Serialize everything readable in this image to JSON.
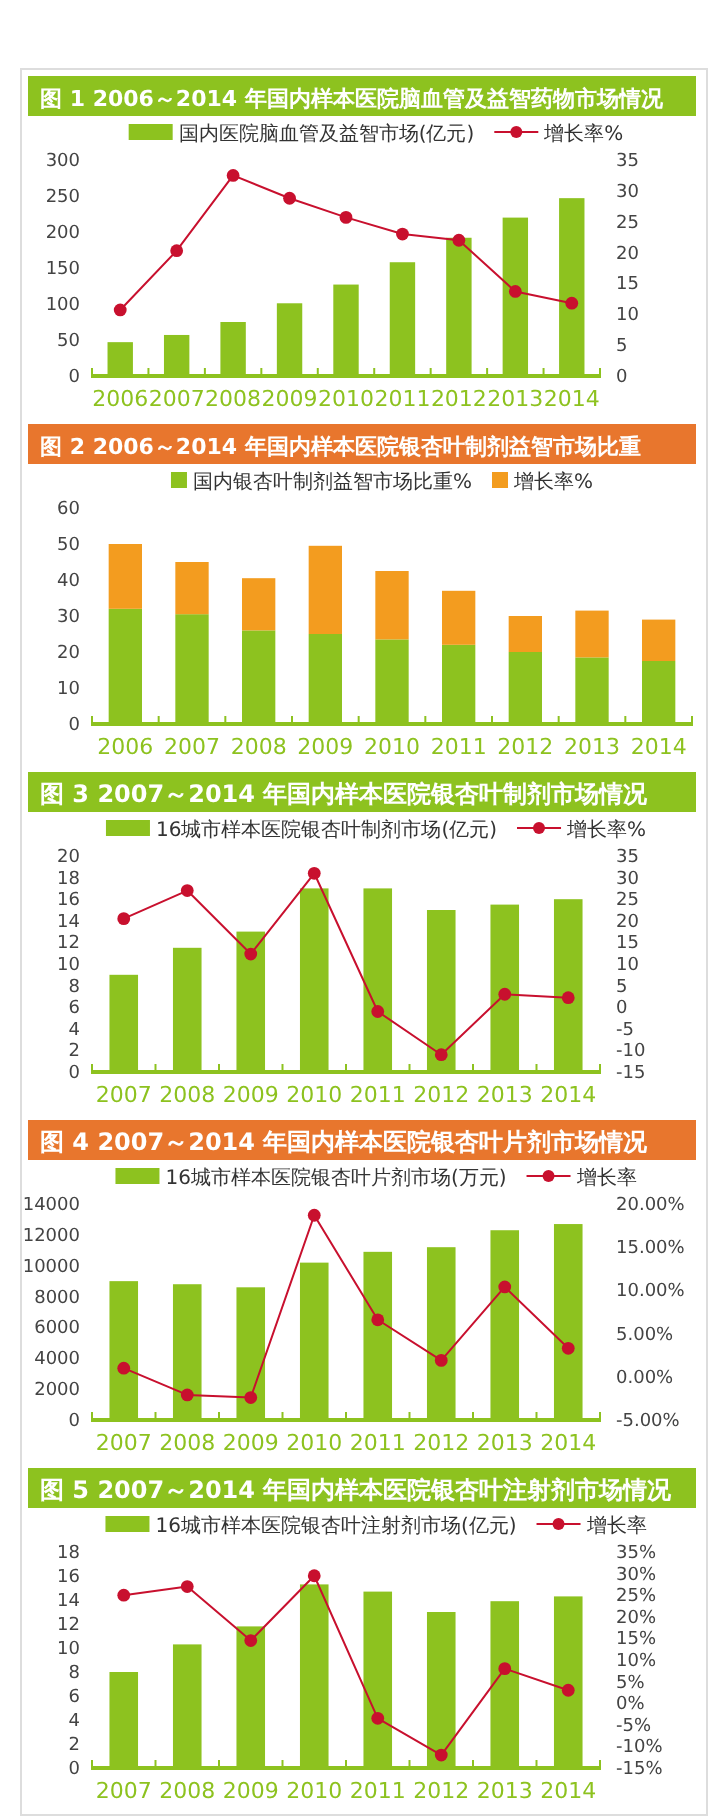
{
  "chart_data": [
    {
      "type": "bar",
      "title": "图 1  2006～2014 年国内样本医院脑血管及益智药物市场情况",
      "categories": [
        "2006",
        "2007",
        "2008",
        "2009",
        "2010",
        "2011",
        "2012",
        "2013",
        "2014"
      ],
      "legend": "top",
      "marker": "circle",
      "ylim": [
        0,
        300
      ],
      "yticks": [
        0,
        50,
        100,
        150,
        200,
        250,
        300
      ],
      "y2lim": [
        0,
        35
      ],
      "y2ticks": [
        0,
        5,
        10,
        15,
        20,
        25,
        30,
        35
      ],
      "series": [
        {
          "name": "国内医院脑血管及益智市场(亿元)",
          "color": "#8dc21f",
          "values": [
            47,
            57,
            75,
            101,
            127,
            158,
            192,
            220,
            247
          ]
        },
        {
          "name": "增长率%",
          "type": "line",
          "axis": "y2",
          "color": "#c8102e",
          "values": [
            10.7,
            20.3,
            32.5,
            28.8,
            25.7,
            23.0,
            22.0,
            13.7,
            11.8
          ]
        }
      ]
    },
    {
      "type": "bar",
      "title": "图 2  2006～2014 年国内样本医院银杏叶制剂益智市场比重",
      "categories": [
        "2006",
        "2007",
        "2008",
        "2009",
        "2010",
        "2011",
        "2012",
        "2013",
        "2014"
      ],
      "legend": "top",
      "stacked": true,
      "ylim": [
        0,
        60
      ],
      "yticks": [
        0,
        10,
        20,
        30,
        40,
        50,
        60
      ],
      "series": [
        {
          "name": "国内银杏叶制剂益智市场比重%",
          "color": "#8dc21f",
          "values": [
            32,
            30.5,
            26,
            25,
            23.5,
            22,
            20,
            18.5,
            17.5
          ]
        },
        {
          "name": "增长率%",
          "color": "#f39c1f",
          "values": [
            18,
            14.5,
            14.5,
            24.5,
            19,
            15,
            10,
            13,
            11.5
          ]
        }
      ]
    },
    {
      "type": "bar",
      "title": "图 3  2007～2014 年国内样本医院银杏叶制剂市场情况",
      "categories": [
        "2007",
        "2008",
        "2009",
        "2010",
        "2011",
        "2012",
        "2013",
        "2014"
      ],
      "legend": "top",
      "marker": "circle",
      "ylim": [
        0,
        20
      ],
      "yticks": [
        0,
        2,
        4,
        6,
        8,
        10,
        12,
        14,
        16,
        18,
        20
      ],
      "y2lim": [
        -15,
        35
      ],
      "y2ticks": [
        -15,
        -10,
        -5,
        0,
        5,
        10,
        15,
        20,
        25,
        30,
        35
      ],
      "series": [
        {
          "name": "16城市样本医院银杏叶制剂市场(亿元)",
          "color": "#8dc21f",
          "values": [
            9,
            11.5,
            13,
            17,
            17,
            15,
            15.5,
            16
          ]
        },
        {
          "name": "增长率%",
          "type": "line",
          "axis": "y2",
          "color": "#c8102e",
          "values": [
            20.5,
            27,
            12.3,
            31,
            -1,
            -11,
            3,
            2.2
          ]
        }
      ]
    },
    {
      "type": "bar",
      "title": "图 4  2007～2014 年国内样本医院银杏叶片剂市场情况",
      "categories": [
        "2007",
        "2008",
        "2009",
        "2010",
        "2011",
        "2012",
        "2013",
        "2014"
      ],
      "legend": "top",
      "marker": "circle",
      "ylim": [
        0,
        14000
      ],
      "yticks": [
        0,
        2000,
        4000,
        6000,
        8000,
        10000,
        12000,
        14000
      ],
      "y2lim": [
        -5,
        20
      ],
      "y2ticks": [
        {
          "value": -5,
          "label": "-5.00%"
        },
        {
          "value": 0,
          "label": "0.00%"
        },
        {
          "value": 5,
          "label": "5.00%"
        },
        {
          "value": 10,
          "label": "10.00%"
        },
        {
          "value": 15,
          "label": "15.00%"
        },
        {
          "value": 20,
          "label": "20.00%"
        }
      ],
      "series": [
        {
          "name": "16城市样本医院银杏叶片剂市场(万元)",
          "color": "#8dc21f",
          "values": [
            9000,
            8800,
            8600,
            10200,
            10900,
            11200,
            12300,
            12700
          ]
        },
        {
          "name": "增长率",
          "type": "line",
          "axis": "y2",
          "color": "#c8102e",
          "values": [
            1.0,
            -2.1,
            -2.4,
            18.7,
            6.6,
            1.9,
            10.4,
            3.3
          ]
        }
      ]
    },
    {
      "type": "bar",
      "title": "图 5  2007～2014 年国内样本医院银杏叶注射剂市场情况",
      "categories": [
        "2007",
        "2008",
        "2009",
        "2010",
        "2011",
        "2012",
        "2013",
        "2014"
      ],
      "legend": "top",
      "marker": "circle",
      "ylim": [
        0,
        18
      ],
      "yticks": [
        0,
        2,
        4,
        6,
        8,
        10,
        12,
        14,
        16,
        18
      ],
      "y2lim": [
        -15,
        35
      ],
      "y2ticks": [
        {
          "value": -15,
          "label": "-15%"
        },
        {
          "value": -10,
          "label": "-10%"
        },
        {
          "value": -5,
          "label": "-5%"
        },
        {
          "value": 0,
          "label": "0%"
        },
        {
          "value": 5,
          "label": "5%"
        },
        {
          "value": 10,
          "label": "10%"
        },
        {
          "value": 15,
          "label": "15%"
        },
        {
          "value": 20,
          "label": "20%"
        },
        {
          "value": 25,
          "label": "25%"
        },
        {
          "value": 30,
          "label": "30%"
        },
        {
          "value": 35,
          "label": "35%"
        }
      ],
      "series": [
        {
          "name": "16城市样本医院银杏叶注射剂市场(亿元)",
          "color": "#8dc21f",
          "values": [
            8,
            10.3,
            11.8,
            15.3,
            14.7,
            13,
            13.9,
            14.3
          ]
        },
        {
          "name": "增长率",
          "type": "line",
          "axis": "y2",
          "color": "#c8102e",
          "values": [
            25,
            27,
            14.5,
            29.5,
            -3.5,
            -12,
            8,
            3
          ]
        }
      ]
    }
  ]
}
